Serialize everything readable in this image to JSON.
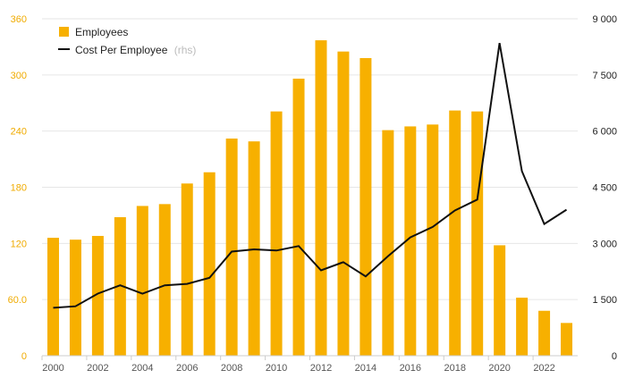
{
  "chart_data": {
    "type": "bar",
    "categories": [
      "2000",
      "2001",
      "2002",
      "2003",
      "2004",
      "2005",
      "2006",
      "2007",
      "2008",
      "2009",
      "2010",
      "2011",
      "2012",
      "2013",
      "2014",
      "2015",
      "2016",
      "2017",
      "2018",
      "2019",
      "2020",
      "2021",
      "2022",
      "2023"
    ],
    "x_tick_labels": [
      "2000",
      "2002",
      "2004",
      "2006",
      "2008",
      "2010",
      "2012",
      "2014",
      "2016",
      "2018",
      "2020",
      "2022"
    ],
    "series": [
      {
        "name": "Employees",
        "type": "bar",
        "axis": "left",
        "color": "#f7b000",
        "values": [
          126,
          124,
          128,
          148,
          160,
          162,
          184,
          196,
          232,
          229,
          261,
          296,
          337,
          325,
          318,
          241,
          245,
          247,
          262,
          261,
          118,
          62,
          48,
          35
        ]
      },
      {
        "name": "Cost Per Employee",
        "type": "line",
        "axis": "right",
        "color": "#111111",
        "values": [
          1280,
          1320,
          1660,
          1880,
          1660,
          1880,
          1920,
          2080,
          2780,
          2840,
          2810,
          2930,
          2280,
          2500,
          2120,
          2660,
          3160,
          3440,
          3880,
          4170,
          8350,
          4930,
          3520,
          3900
        ]
      }
    ],
    "left_axis": {
      "min": 0,
      "max": 360,
      "ticks": [
        0,
        60,
        120,
        180,
        240,
        300,
        360
      ],
      "tick_labels": [
        "0",
        "60.0",
        "120",
        "180",
        "240",
        "300",
        "360"
      ]
    },
    "right_axis": {
      "min": 0,
      "max": 9000,
      "ticks": [
        0,
        1500,
        3000,
        4500,
        6000,
        7500,
        9000
      ],
      "tick_labels": [
        "0",
        "1 500",
        "3 000",
        "4 500",
        "6 000",
        "7 500",
        "9 000"
      ]
    },
    "legend": {
      "placement": "top-left",
      "items": [
        {
          "label": "Employees",
          "suffix": ""
        },
        {
          "label": "Cost Per Employee",
          "suffix": "(rhs)"
        }
      ]
    },
    "grid": true,
    "title": "",
    "xlabel": "",
    "ylabel": ""
  }
}
